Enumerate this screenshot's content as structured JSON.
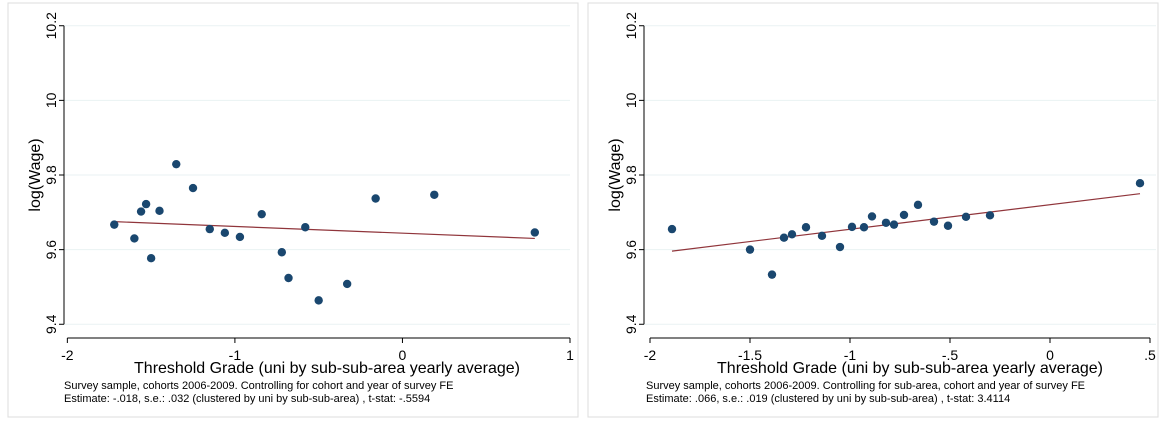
{
  "chart_data": [
    {
      "type": "scatter",
      "xlabel": "Threshold Grade (uni by sub-sub-area yearly average)",
      "ylabel": "log(Wage)",
      "xlim": [
        -2.02,
        1.0
      ],
      "ylim": [
        9.39,
        10.21
      ],
      "xticks": [
        -2,
        -1,
        0,
        1
      ],
      "xtick_labels": [
        "-2",
        "-1",
        "0",
        "1"
      ],
      "yticks": [
        9.4,
        9.6,
        9.8,
        10,
        10.2
      ],
      "ytick_labels": [
        "9.4",
        "9.6",
        "9.8",
        "10",
        "10.2"
      ],
      "grid": true,
      "points": [
        {
          "x": -1.72,
          "y": 9.667
        },
        {
          "x": -1.6,
          "y": 9.63
        },
        {
          "x": -1.56,
          "y": 9.702
        },
        {
          "x": -1.53,
          "y": 9.722
        },
        {
          "x": -1.5,
          "y": 9.577
        },
        {
          "x": -1.45,
          "y": 9.704
        },
        {
          "x": -1.35,
          "y": 9.829
        },
        {
          "x": -1.25,
          "y": 9.765
        },
        {
          "x": -1.15,
          "y": 9.655
        },
        {
          "x": -1.06,
          "y": 9.645
        },
        {
          "x": -0.97,
          "y": 9.634
        },
        {
          "x": -0.84,
          "y": 9.695
        },
        {
          "x": -0.72,
          "y": 9.593
        },
        {
          "x": -0.68,
          "y": 9.524
        },
        {
          "x": -0.58,
          "y": 9.66
        },
        {
          "x": -0.5,
          "y": 9.464
        },
        {
          "x": -0.33,
          "y": 9.508
        },
        {
          "x": -0.16,
          "y": 9.737
        },
        {
          "x": 0.19,
          "y": 9.747
        },
        {
          "x": 0.79,
          "y": 9.646
        }
      ],
      "fit_line": {
        "x": [
          -1.72,
          0.79
        ],
        "y": [
          9.675,
          9.63
        ]
      },
      "notes": [
        "Survey sample, cohorts 2006-2009. Controlling for cohort and year of survey FE",
        "Estimate: -.018, s.e.: .032 (clustered by uni by sub-sub-area) , t-stat: -.5594"
      ]
    },
    {
      "type": "scatter",
      "xlabel": "Threshold Grade (uni by sub-sub-area yearly average)",
      "ylabel": "log(Wage)",
      "xlim": [
        -2.03,
        0.53
      ],
      "ylim": [
        9.39,
        10.21
      ],
      "xticks": [
        -2,
        -1.5,
        -1,
        -0.5,
        0,
        0.5
      ],
      "xtick_labels": [
        "-2",
        "-1.5",
        "-1",
        "-.5",
        "0",
        ".5"
      ],
      "yticks": [
        9.4,
        9.6,
        9.8,
        10,
        10.2
      ],
      "ytick_labels": [
        "9.4",
        "9.6",
        "9.8",
        "10",
        "10.2"
      ],
      "grid": true,
      "points": [
        {
          "x": -1.89,
          "y": 9.655
        },
        {
          "x": -1.5,
          "y": 9.6
        },
        {
          "x": -1.39,
          "y": 9.533
        },
        {
          "x": -1.33,
          "y": 9.632
        },
        {
          "x": -1.29,
          "y": 9.641
        },
        {
          "x": -1.22,
          "y": 9.66
        },
        {
          "x": -1.14,
          "y": 9.637
        },
        {
          "x": -1.05,
          "y": 9.607
        },
        {
          "x": -0.99,
          "y": 9.661
        },
        {
          "x": -0.93,
          "y": 9.66
        },
        {
          "x": -0.89,
          "y": 9.689
        },
        {
          "x": -0.82,
          "y": 9.672
        },
        {
          "x": -0.78,
          "y": 9.667
        },
        {
          "x": -0.73,
          "y": 9.693
        },
        {
          "x": -0.66,
          "y": 9.72
        },
        {
          "x": -0.58,
          "y": 9.675
        },
        {
          "x": -0.51,
          "y": 9.664
        },
        {
          "x": -0.42,
          "y": 9.688
        },
        {
          "x": -0.3,
          "y": 9.692
        },
        {
          "x": 0.45,
          "y": 9.778
        }
      ],
      "fit_line": {
        "x": [
          -1.89,
          0.45
        ],
        "y": [
          9.596,
          9.75
        ]
      },
      "notes": [
        "Survey sample, cohorts 2006-2009. Controlling for sub-area, cohort and year of survey FE",
        "Estimate: .066, s.e.: .019 (clustered by uni by sub-sub-area) , t-stat: 3.4114"
      ]
    }
  ],
  "colors": {
    "marker": "#1a476f",
    "fit_line": "#90353b",
    "grid": "#eaf2f3",
    "axis": "#000000",
    "panel_border": "#dddddd"
  }
}
